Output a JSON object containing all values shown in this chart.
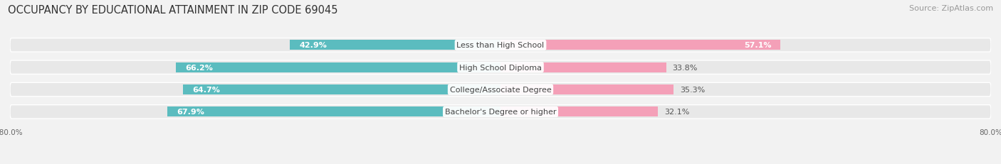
{
  "title": "OCCUPANCY BY EDUCATIONAL ATTAINMENT IN ZIP CODE 69045",
  "source": "Source: ZipAtlas.com",
  "categories": [
    "Less than High School",
    "High School Diploma",
    "College/Associate Degree",
    "Bachelor's Degree or higher"
  ],
  "owner_values": [
    42.9,
    66.2,
    64.7,
    67.9
  ],
  "renter_values": [
    57.1,
    33.8,
    35.3,
    32.1
  ],
  "owner_color": "#5bbcbf",
  "renter_color": "#f4a0b8",
  "background_color": "#f2f2f2",
  "bar_bg_color": "#e4e4e4",
  "row_bg_color": "#e8e8e8",
  "title_fontsize": 10.5,
  "source_fontsize": 8,
  "label_fontsize": 8,
  "cat_fontsize": 8,
  "bar_height": 0.62,
  "xlim_left": -80.0,
  "xlim_right": 80.0
}
